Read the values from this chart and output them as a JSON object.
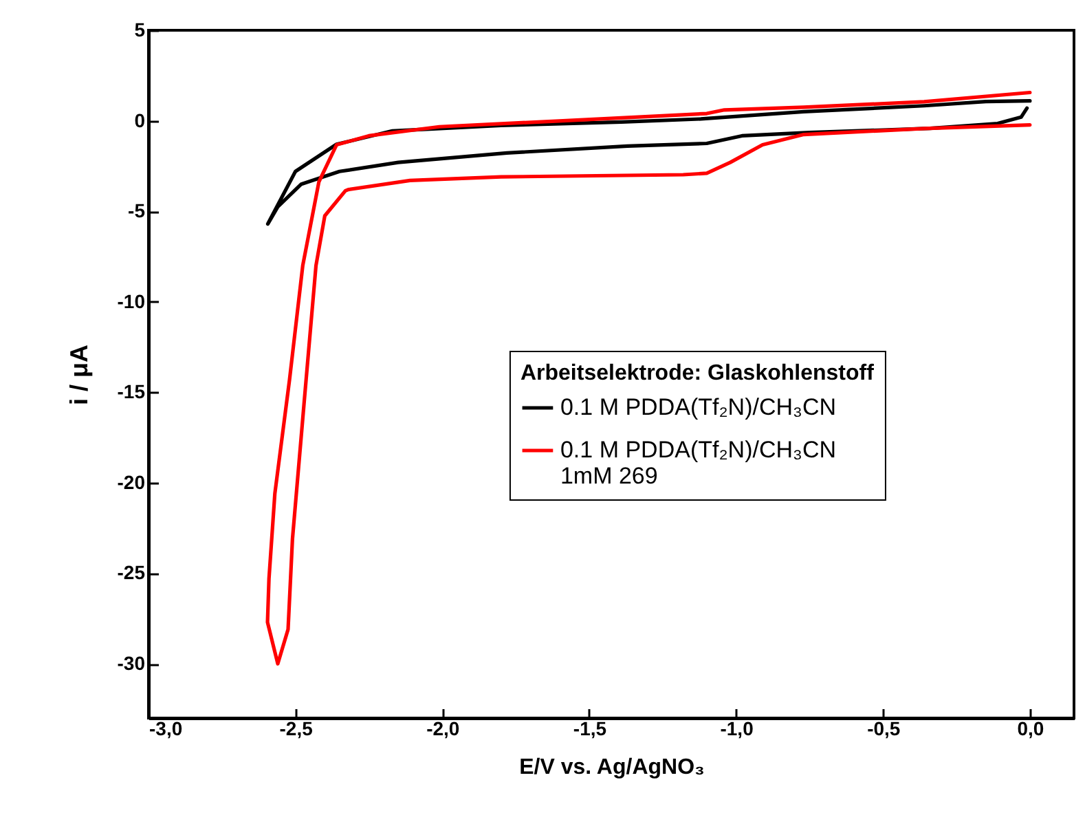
{
  "chart_data": {
    "type": "line",
    "xlabel": "E/V vs. Ag/AgNO₃",
    "ylabel": "i / μA",
    "legend_title": "Arbeitselektrode: Glaskohlenstoff",
    "xlim": [
      -3.0,
      0.15
    ],
    "xticks": [
      {
        "value": -3.0,
        "label": "-3,0"
      },
      {
        "value": -2.5,
        "label": "-2,5"
      },
      {
        "value": -2.0,
        "label": "-2,0"
      },
      {
        "value": -1.5,
        "label": "-1,5"
      },
      {
        "value": -1.0,
        "label": "-1,0"
      },
      {
        "value": -0.5,
        "label": "-0,5"
      },
      {
        "value": 0.0,
        "label": "0,0"
      }
    ],
    "ylim": [
      -33,
      5
    ],
    "yticks": [
      -30,
      -25,
      -20,
      -15,
      -10,
      -5,
      0,
      5
    ],
    "grid": false,
    "legend": "center right",
    "marker": "none",
    "line_style": "solid",
    "series": [
      {
        "name": "0.1 M PDDA(Tf₂N)/CH₃CN",
        "color": "#000000",
        "x": [
          0.0,
          -0.15,
          -0.36,
          -0.77,
          -1.12,
          -1.39,
          -1.8,
          -2.17,
          -2.36,
          -2.5,
          -2.594,
          -2.56,
          -2.48,
          -2.35,
          -2.15,
          -1.78,
          -1.37,
          -1.1,
          -0.98,
          -0.75,
          -0.34,
          -0.11,
          -0.03,
          -0.01
        ],
        "values": [
          1.1,
          1.06,
          0.83,
          0.5,
          0.1,
          -0.07,
          -0.26,
          -0.56,
          -1.3,
          -2.8,
          -5.7,
          -4.75,
          -3.5,
          -2.8,
          -2.3,
          -1.78,
          -1.4,
          -1.25,
          -0.83,
          -0.65,
          -0.42,
          -0.15,
          0.2,
          0.7
        ]
      },
      {
        "name": "0.1 M PDDA(Tf₂N)/CH₃CN\n1mM 269",
        "color": "#ff0000",
        "x": [
          0.0,
          -0.36,
          -0.77,
          -1.04,
          -1.1,
          -1.59,
          -2.01,
          -2.25,
          -2.36,
          -2.42,
          -2.475,
          -2.52,
          -2.57,
          -2.59,
          -2.595,
          -2.56,
          -2.525,
          -2.51,
          -2.47,
          -2.43,
          -2.4,
          -2.33,
          -2.32,
          -2.11,
          -1.8,
          -1.18,
          -1.1,
          -1.02,
          -0.91,
          -0.77,
          -0.36,
          0.0
        ],
        "values": [
          1.56,
          1.05,
          0.75,
          0.6,
          0.4,
          0.0,
          -0.33,
          -0.83,
          -1.33,
          -3.37,
          -8.0,
          -14.3,
          -20.6,
          -25.3,
          -27.7,
          -30.0,
          -28.1,
          -23.1,
          -15.5,
          -8.0,
          -5.25,
          -3.87,
          -3.8,
          -3.3,
          -3.1,
          -2.98,
          -2.9,
          -2.3,
          -1.33,
          -0.76,
          -0.43,
          -0.23
        ]
      }
    ]
  }
}
